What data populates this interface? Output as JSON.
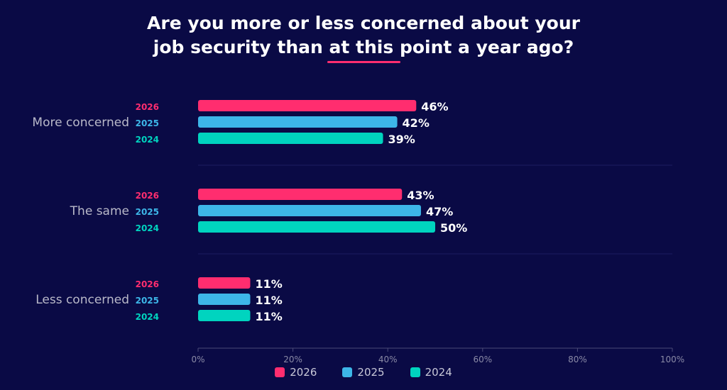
{
  "title": {
    "line1": "Are you more or less concerned about your",
    "line2": "job security than at this point a year ago?"
  },
  "colors": {
    "background": "#0a0a45",
    "accent_underline": "#ff2d6f",
    "2026": "#ff2d6f",
    "2025": "#3db6e8",
    "2024": "#00d4bf"
  },
  "chart_data": {
    "type": "bar",
    "orientation": "horizontal",
    "categories": [
      "More concerned",
      "The same",
      "Less concerned"
    ],
    "series": [
      {
        "name": "2026",
        "values": [
          46,
          43,
          11
        ]
      },
      {
        "name": "2025",
        "values": [
          42,
          47,
          11
        ]
      },
      {
        "name": "2024",
        "values": [
          39,
          50,
          11
        ]
      }
    ],
    "value_suffix": "%",
    "xlim": [
      0,
      100
    ],
    "x_ticks": [
      "0%",
      "20%",
      "40%",
      "60%",
      "80%",
      "100%"
    ],
    "legend_position": "bottom",
    "grid": false
  }
}
